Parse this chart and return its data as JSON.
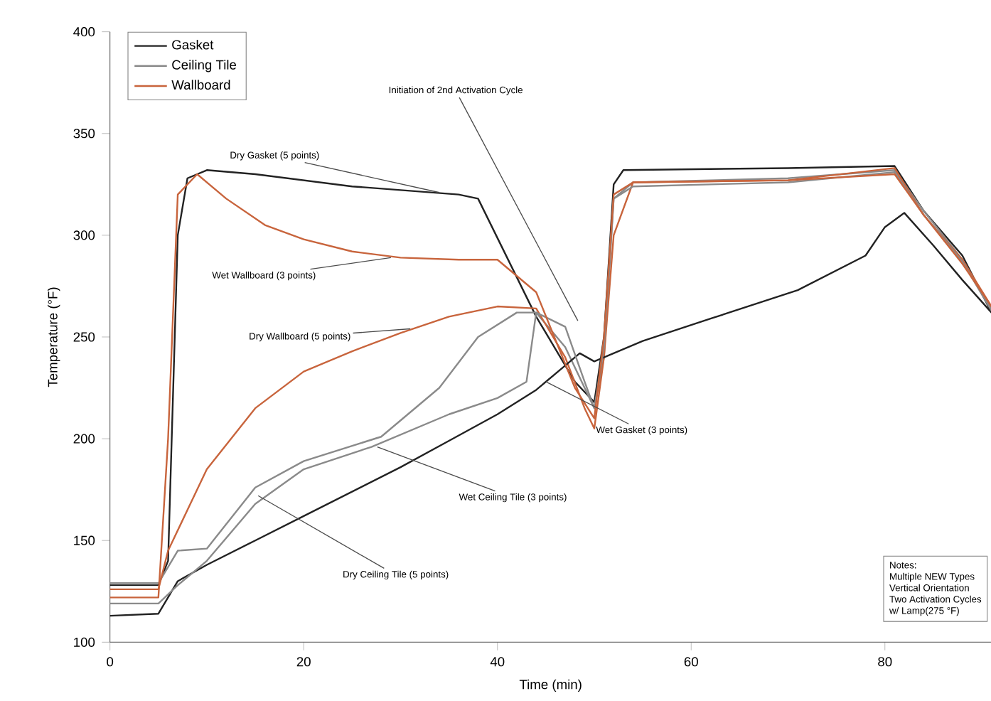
{
  "chart_data": {
    "type": "line",
    "xlabel": "Time (min)",
    "ylabel": "Temperature (°F)",
    "xlim": [
      0,
      91
    ],
    "ylim": [
      100,
      400
    ],
    "xticks": [
      0,
      20,
      40,
      60,
      80
    ],
    "yticks": [
      100,
      150,
      200,
      250,
      300,
      350,
      400
    ],
    "legend": "top left",
    "series": [
      {
        "name": "Gasket",
        "color": "#222222",
        "x": [
          0,
          5,
          6,
          7,
          8,
          10,
          15,
          25,
          36,
          38,
          44,
          48,
          50,
          51,
          52,
          53,
          70,
          81,
          84,
          88,
          91
        ],
        "values": [
          128,
          128,
          140,
          300,
          328,
          332,
          330,
          324,
          320,
          318,
          260,
          228,
          218,
          250,
          325,
          332,
          333,
          334,
          312,
          290,
          262
        ]
      },
      {
        "name": "Ceiling Tile",
        "color": "#8a8a8a",
        "x": [
          0,
          5,
          7,
          10,
          15,
          20,
          28,
          34,
          38,
          42,
          44,
          47,
          49,
          50,
          51,
          52,
          54,
          70,
          81,
          84,
          88,
          91
        ],
        "values": [
          129,
          129,
          145,
          146,
          176,
          189,
          201,
          225,
          250,
          262,
          262,
          245,
          225,
          215,
          240,
          318,
          326,
          328,
          332,
          312,
          288,
          264
        ]
      },
      {
        "name": "Wallboard",
        "color": "#c8643c",
        "x": [
          0,
          5,
          6,
          8,
          10,
          15,
          20,
          25,
          30,
          35,
          40,
          44,
          47,
          49,
          50,
          51,
          52,
          54,
          70,
          81,
          84,
          88,
          91
        ],
        "values": [
          126,
          126,
          145,
          165,
          185,
          215,
          233,
          243,
          252,
          260,
          265,
          264,
          240,
          215,
          205,
          240,
          300,
          326,
          327,
          333,
          310,
          288,
          265
        ]
      },
      {
        "color": "#222222",
        "x": [
          0,
          5,
          7,
          10,
          15,
          20,
          25,
          30,
          35,
          40,
          44,
          47,
          48.5,
          50,
          55,
          62,
          71,
          78,
          80,
          82,
          85,
          88,
          91
        ],
        "values": [
          113,
          114,
          130,
          138,
          150,
          162,
          174,
          186,
          199,
          212,
          224,
          236,
          242,
          238,
          248,
          259,
          273,
          290,
          304,
          311,
          295,
          278,
          262
        ]
      },
      {
        "color": "#8a8a8a",
        "x": [
          0,
          5,
          7,
          10,
          15,
          20,
          27,
          35,
          40,
          43,
          44,
          47,
          49,
          50,
          51,
          52,
          54,
          70,
          81,
          84,
          88,
          91
        ],
        "values": [
          119,
          119,
          128,
          140,
          168,
          185,
          196,
          212,
          220,
          228,
          262,
          255,
          228,
          215,
          245,
          318,
          324,
          326,
          331,
          310,
          287,
          263
        ]
      },
      {
        "color": "#c8643c",
        "x": [
          0,
          5,
          6,
          7,
          9,
          12,
          16,
          20,
          25,
          30,
          36,
          40,
          44,
          48,
          50,
          51,
          52,
          54,
          70,
          81,
          84,
          88,
          91
        ],
        "values": [
          122,
          122,
          200,
          320,
          330,
          318,
          305,
          298,
          292,
          289,
          288,
          288,
          272,
          225,
          210,
          250,
          320,
          326,
          327,
          330,
          310,
          286,
          265
        ]
      }
    ],
    "annotations": [
      {
        "text": "Dry Gasket (5 points)",
        "x": 34,
        "y": 321
      },
      "Initiation of 2nd Activation Cycle",
      {
        "text": "Wet Wallboard (3 points)",
        "x": 29,
        "y": 289
      },
      {
        "text": "Dry Wallboard (5 points)",
        "x": 31,
        "y": 254
      },
      {
        "text": "Wet Gasket (3 points)",
        "x": 45,
        "y": 228
      },
      {
        "text": "Wet Ceiling Tile (3 points)",
        "x": 27.6,
        "y": 196
      },
      {
        "text": "Dry Ceiling Tile (5 points)",
        "x": 15.3,
        "y": 172
      },
      "Notes:",
      "Multiple NEW Types",
      "Vertical Orientation",
      "Two Activation Cycles",
      "w/ Lamp(275 °F)"
    ]
  }
}
